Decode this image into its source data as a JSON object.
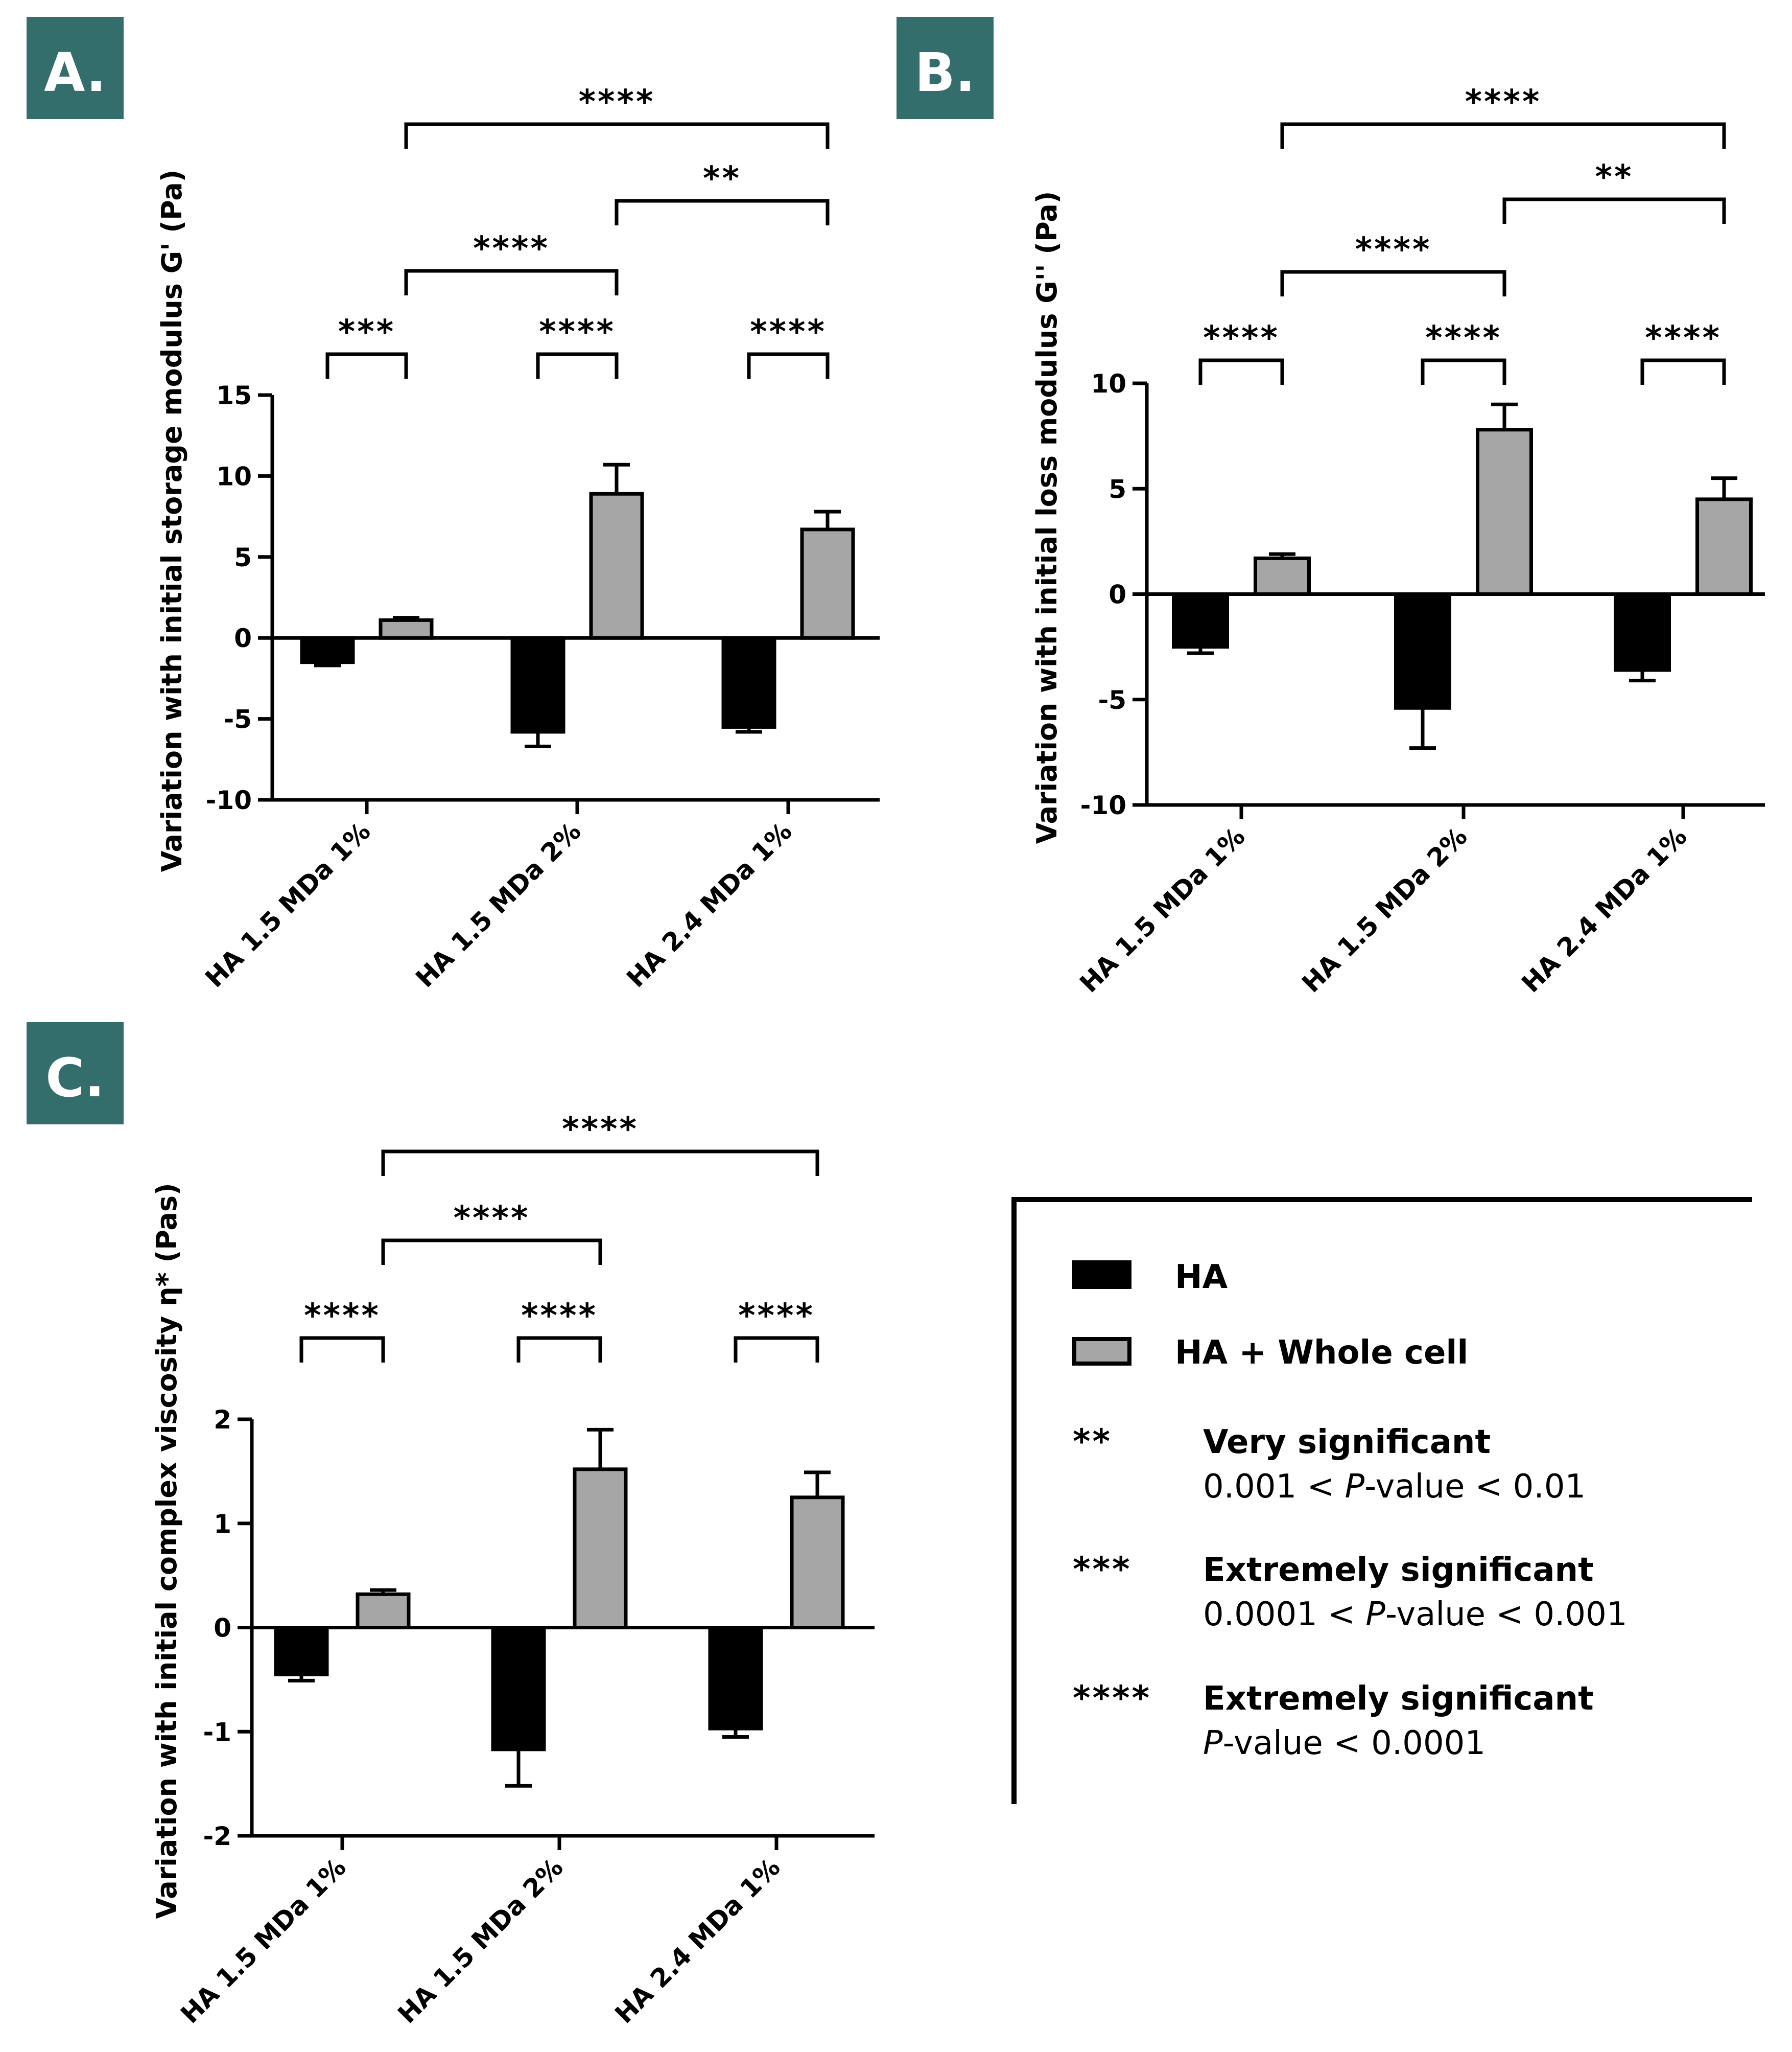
{
  "colors": {
    "badge": "#336e6c",
    "ha": "#000000",
    "ha_cell": "#a6a6a6"
  },
  "chart_data": [
    {
      "panel": "A.",
      "type": "bar",
      "ylabel": "Variation with initial storage modulus G' (Pa)",
      "ylim": [
        -10,
        15
      ],
      "yticks": [
        -10,
        -5,
        0,
        5,
        10,
        15
      ],
      "categories": [
        "HA 1.5 MDa 1%",
        "HA 1.5 MDa 2%",
        "HA 2.4 MDa 1%"
      ],
      "series": [
        {
          "name": "HA",
          "color_key": "ha",
          "values": [
            -1.5,
            -5.8,
            -5.5
          ],
          "errors": [
            0.2,
            0.9,
            0.3
          ]
        },
        {
          "name": "HA + Whole cell",
          "color_key": "ha_cell",
          "values": [
            1.1,
            8.9,
            6.7
          ],
          "errors": [
            0.15,
            1.8,
            1.1
          ]
        }
      ],
      "significance": [
        {
          "from": [
            0,
            0
          ],
          "to": [
            0,
            1
          ],
          "stars": "***",
          "level": 0
        },
        {
          "from": [
            1,
            0
          ],
          "to": [
            1,
            1
          ],
          "stars": "****",
          "level": 0
        },
        {
          "from": [
            2,
            0
          ],
          "to": [
            2,
            1
          ],
          "stars": "****",
          "level": 0
        },
        {
          "from": [
            0,
            1
          ],
          "to": [
            1,
            1
          ],
          "stars": "****",
          "level": 1
        },
        {
          "from": [
            1,
            1
          ],
          "to": [
            2,
            1
          ],
          "stars": "**",
          "level": 2
        },
        {
          "from": [
            0,
            1
          ],
          "to": [
            2,
            1
          ],
          "stars": "****",
          "level": 3
        }
      ]
    },
    {
      "panel": "B.",
      "type": "bar",
      "ylabel": "Variation with initial loss modulus G'' (Pa)",
      "ylim": [
        -10,
        10
      ],
      "yticks": [
        -10,
        -5,
        0,
        5,
        10
      ],
      "categories": [
        "HA 1.5 MDa 1%",
        "HA 1.5 MDa 2%",
        "HA 2.4 MDa 1%"
      ],
      "series": [
        {
          "name": "HA",
          "color_key": "ha",
          "values": [
            -2.5,
            -5.4,
            -3.6
          ],
          "errors": [
            0.3,
            1.9,
            0.5
          ]
        },
        {
          "name": "HA + Whole cell",
          "color_key": "ha_cell",
          "values": [
            1.7,
            7.8,
            4.5
          ],
          "errors": [
            0.2,
            1.2,
            1.0
          ]
        }
      ],
      "significance": [
        {
          "from": [
            0,
            0
          ],
          "to": [
            0,
            1
          ],
          "stars": "****",
          "level": 0
        },
        {
          "from": [
            1,
            0
          ],
          "to": [
            1,
            1
          ],
          "stars": "****",
          "level": 0
        },
        {
          "from": [
            2,
            0
          ],
          "to": [
            2,
            1
          ],
          "stars": "****",
          "level": 0
        },
        {
          "from": [
            0,
            1
          ],
          "to": [
            1,
            1
          ],
          "stars": "****",
          "level": 1
        },
        {
          "from": [
            1,
            1
          ],
          "to": [
            2,
            1
          ],
          "stars": "**",
          "level": 2
        },
        {
          "from": [
            0,
            1
          ],
          "to": [
            2,
            1
          ],
          "stars": "****",
          "level": 3
        }
      ]
    },
    {
      "panel": "C.",
      "type": "bar",
      "ylabel": "Variation with initial complex viscosity η* (Pas)",
      "ylim": [
        -2,
        2
      ],
      "yticks": [
        -2,
        -1,
        0,
        1,
        2
      ],
      "categories": [
        "HA 1.5 MDa 1%",
        "HA 1.5 MDa 2%",
        "HA 2.4 MDa 1%"
      ],
      "series": [
        {
          "name": "HA",
          "color_key": "ha",
          "values": [
            -0.45,
            -1.17,
            -0.97
          ],
          "errors": [
            0.06,
            0.35,
            0.08
          ]
        },
        {
          "name": "HA + Whole cell",
          "color_key": "ha_cell",
          "values": [
            0.32,
            1.52,
            1.25
          ],
          "errors": [
            0.04,
            0.38,
            0.24
          ]
        }
      ],
      "significance": [
        {
          "from": [
            0,
            0
          ],
          "to": [
            0,
            1
          ],
          "stars": "****",
          "level": 0
        },
        {
          "from": [
            1,
            0
          ],
          "to": [
            1,
            1
          ],
          "stars": "****",
          "level": 0
        },
        {
          "from": [
            2,
            0
          ],
          "to": [
            2,
            1
          ],
          "stars": "****",
          "level": 0
        },
        {
          "from": [
            0,
            1
          ],
          "to": [
            1,
            1
          ],
          "stars": "****",
          "level": 1
        },
        {
          "from": [
            0,
            1
          ],
          "to": [
            2,
            1
          ],
          "stars": "****",
          "level": 2
        }
      ]
    }
  ],
  "legend": {
    "series": [
      {
        "label": "HA",
        "color_key": "ha"
      },
      {
        "label": "HA + Whole cell",
        "color_key": "ha_cell"
      }
    ],
    "significance": [
      {
        "symbol": "**",
        "title": "Very significant",
        "p_prefix": "0.001 < ",
        "p_italic": "P",
        "p_suffix": "-value < 0.01"
      },
      {
        "symbol": "***",
        "title": "Extremely significant",
        "p_prefix": "0.0001 < ",
        "p_italic": "P",
        "p_suffix": "-value < 0.001"
      },
      {
        "symbol": "****",
        "title": "Extremely significant",
        "p_prefix": "",
        "p_italic": "P",
        "p_suffix": "-value < 0.0001"
      }
    ]
  }
}
